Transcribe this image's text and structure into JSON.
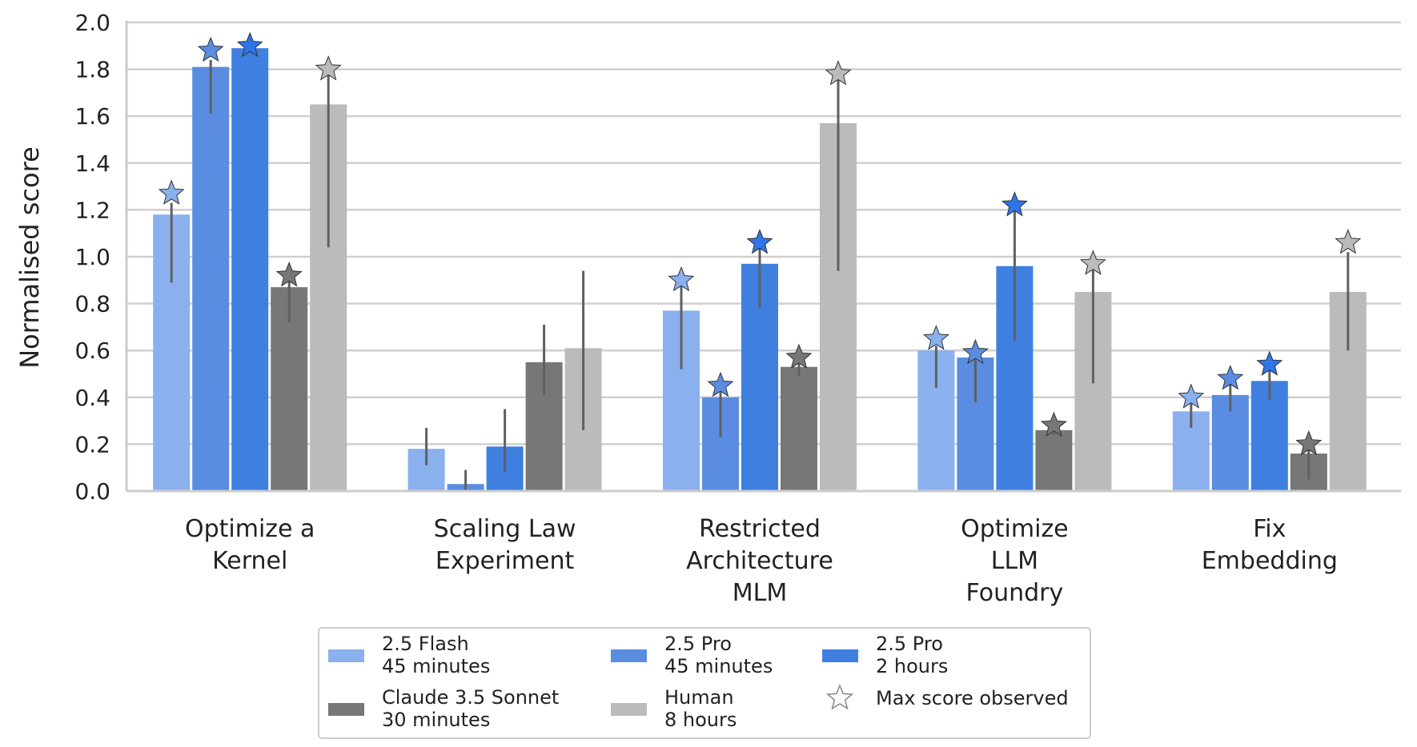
{
  "chart_data": {
    "type": "bar",
    "ylabel": "Normalised score",
    "ylim": [
      0,
      2.0
    ],
    "yticks": [
      "0.0",
      "0.2",
      "0.4",
      "0.6",
      "0.8",
      "1.0",
      "1.2",
      "1.4",
      "1.6",
      "1.8",
      "2.0"
    ],
    "grid": true,
    "legend_placement": "bottom-center",
    "categories": [
      [
        "Optimize a",
        "Kernel"
      ],
      [
        "Scaling Law",
        "Experiment"
      ],
      [
        "Restricted",
        "Architecture",
        "MLM"
      ],
      [
        "Optimize",
        "LLM",
        "Foundry"
      ],
      [
        "Fix",
        "Embedding"
      ]
    ],
    "series": [
      {
        "name": [
          "2.5 Flash",
          "45 minutes"
        ],
        "color": "#8AB0EE",
        "values": [
          1.18,
          0.18,
          0.77,
          0.6,
          0.34
        ],
        "err_low": [
          0.89,
          0.11,
          0.52,
          0.44,
          0.27
        ],
        "err_high": [
          1.23,
          0.27,
          0.88,
          0.62,
          0.38
        ],
        "max_observed": [
          1.27,
          null,
          0.9,
          0.65,
          0.4
        ]
      },
      {
        "name": [
          "2.5 Pro",
          "45 minutes"
        ],
        "color": "#5A8DE1",
        "values": [
          1.81,
          0.03,
          0.4,
          0.57,
          0.41
        ],
        "err_low": [
          1.61,
          0.0,
          0.23,
          0.38,
          0.34
        ],
        "err_high": [
          1.84,
          0.09,
          0.44,
          0.6,
          0.46
        ],
        "max_observed": [
          1.88,
          null,
          0.45,
          0.59,
          0.48
        ]
      },
      {
        "name": [
          "2.5 Pro",
          "2 hours"
        ],
        "color": "#3F7FE0",
        "values": [
          1.89,
          0.19,
          0.97,
          0.96,
          0.47
        ],
        "err_low": [
          1.89,
          0.08,
          0.78,
          0.64,
          0.39
        ],
        "err_high": [
          1.9,
          0.35,
          1.04,
          1.2,
          0.52
        ],
        "max_observed": [
          1.9,
          null,
          1.06,
          1.22,
          0.54
        ]
      },
      {
        "name": [
          "Claude 3.5 Sonnet",
          "30 minutes"
        ],
        "color": "#777777",
        "values": [
          0.87,
          0.55,
          0.53,
          0.26,
          0.16
        ],
        "err_low": [
          0.72,
          0.41,
          0.49,
          0.24,
          0.05
        ],
        "err_high": [
          0.92,
          0.71,
          0.56,
          0.28,
          0.2
        ],
        "max_observed": [
          0.92,
          null,
          0.57,
          0.28,
          0.2
        ]
      },
      {
        "name": [
          "Human",
          "8 hours"
        ],
        "color": "#BBBBBB",
        "values": [
          1.65,
          0.61,
          1.57,
          0.85,
          0.85
        ],
        "err_low": [
          1.04,
          0.26,
          0.94,
          0.46,
          0.6
        ],
        "err_high": [
          1.8,
          0.94,
          1.78,
          0.97,
          1.02
        ],
        "max_observed": [
          1.8,
          null,
          1.78,
          0.97,
          1.06
        ]
      }
    ],
    "legend_extra": "Max score observed"
  }
}
